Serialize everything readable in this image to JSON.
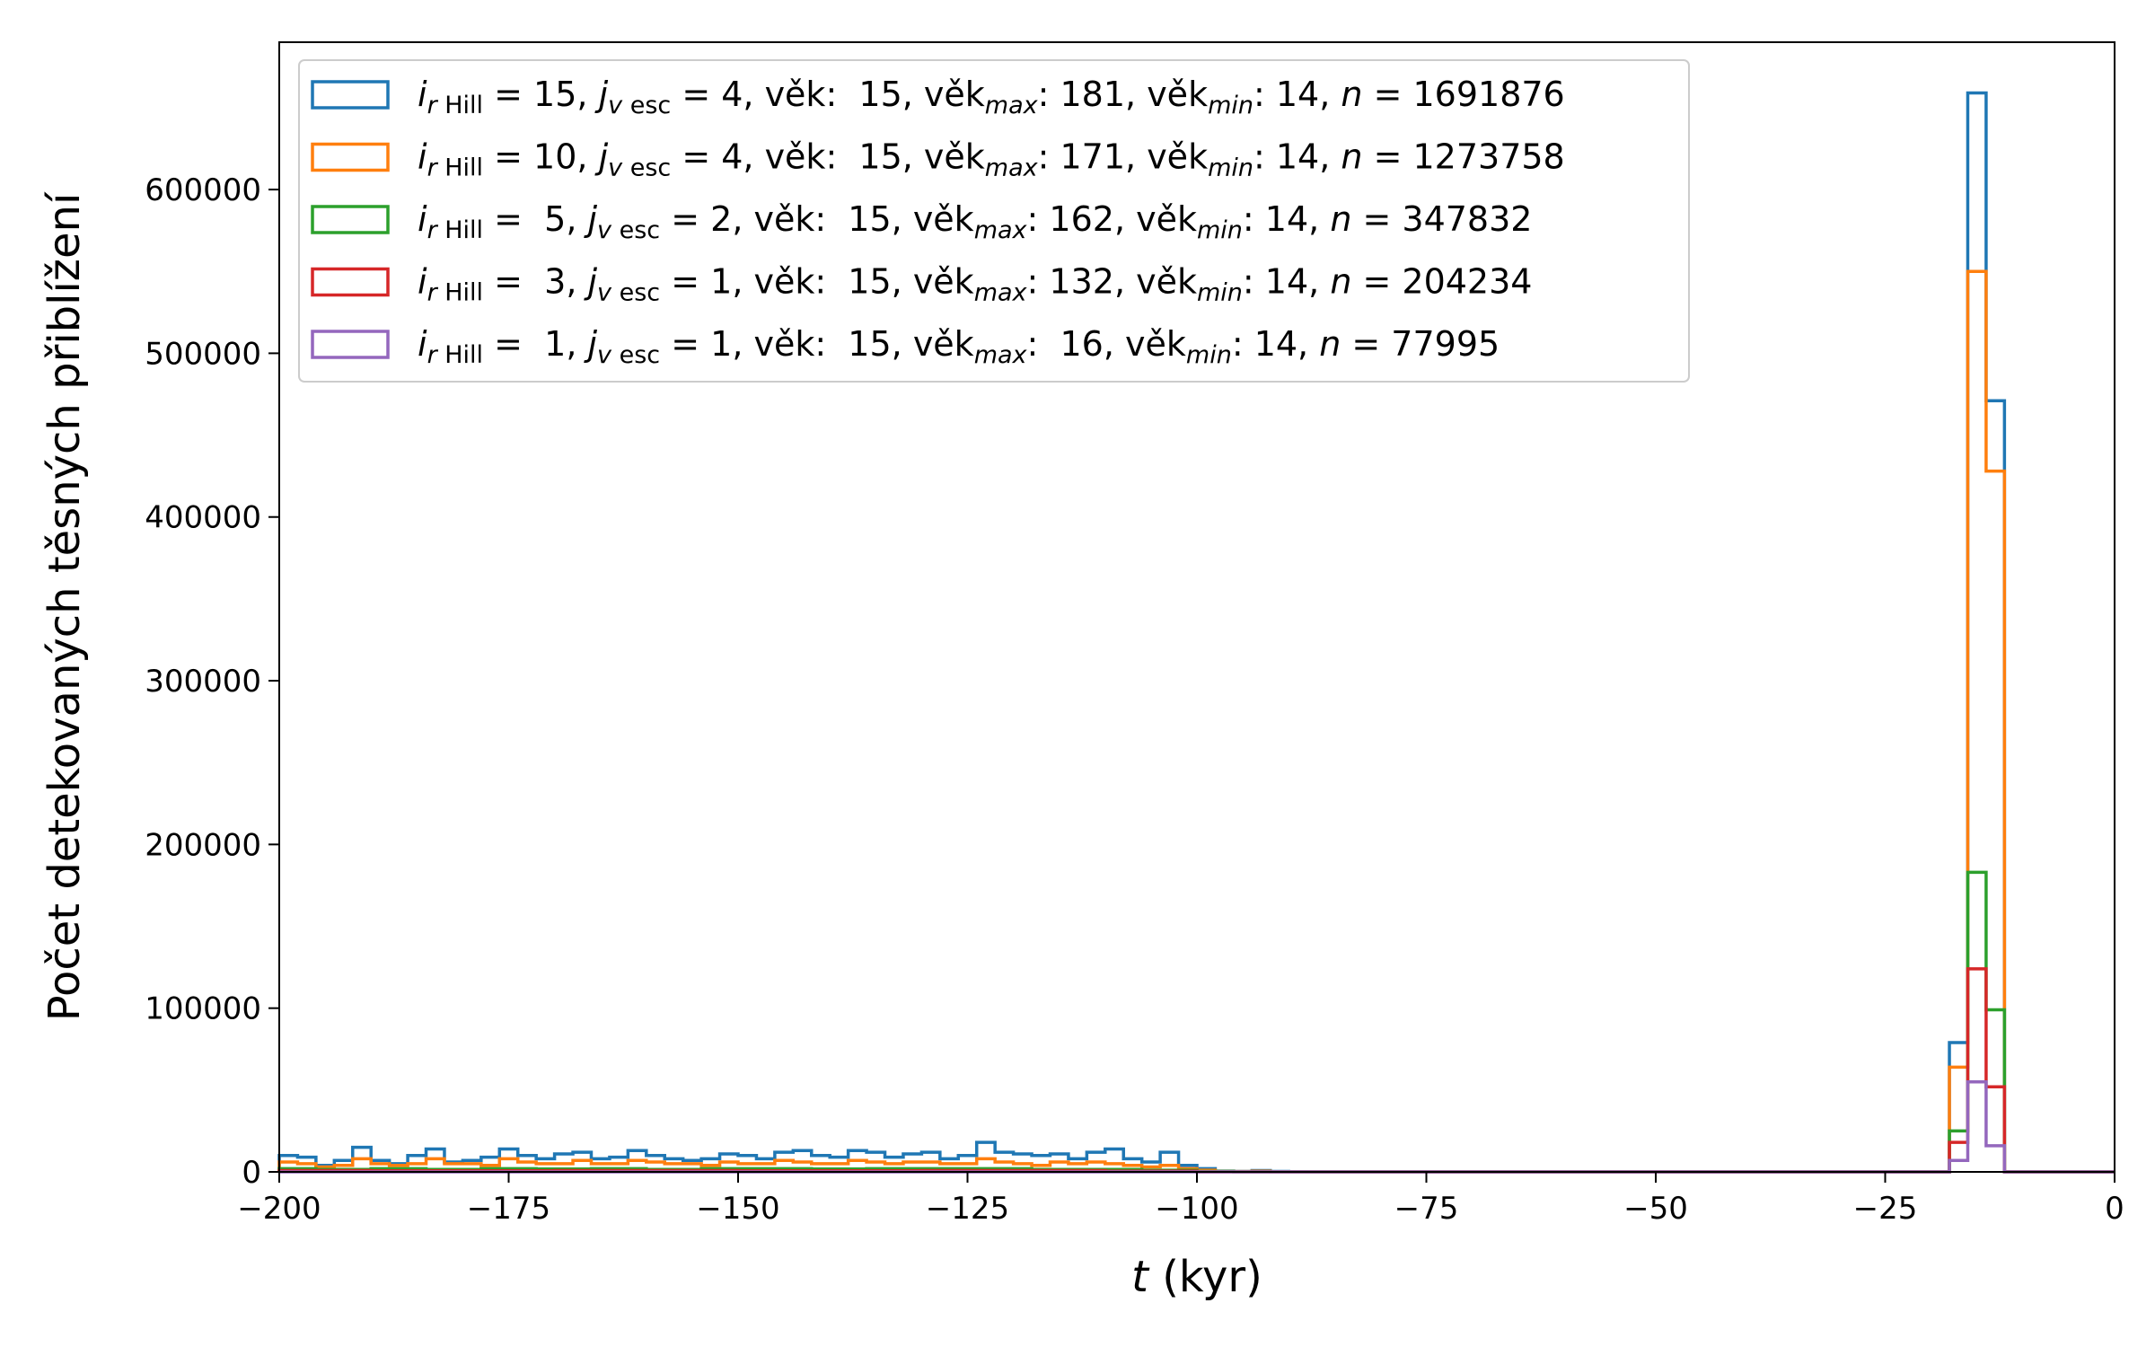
{
  "chart_data": {
    "type": "histogram-step",
    "xlabel_var": "t",
    "xlabel_unit": " (kyr)",
    "ylabel": "Počet detekovaných těsných přiblížení",
    "xlim": [
      -200,
      0
    ],
    "ylim": [
      0,
      690000
    ],
    "xticks": [
      -200,
      -175,
      -150,
      -125,
      -100,
      -75,
      -50,
      -25,
      0
    ],
    "xtick_labels": [
      "−200",
      "−175",
      "−150",
      "−125",
      "−100",
      "−75",
      "−50",
      "−25",
      "0"
    ],
    "yticks": [
      0,
      100000,
      200000,
      300000,
      400000,
      500000,
      600000
    ],
    "ytick_labels": [
      "0",
      "100000",
      "200000",
      "300000",
      "400000",
      "500000",
      "600000"
    ],
    "grid": false,
    "legend_position": "upper-left",
    "bin_width": 2,
    "series": [
      {
        "color": "#1f77b4",
        "legend": {
          "i": "15",
          "j": "4",
          "vek": "15",
          "vekmax": "181",
          "vekmin": "14",
          "n": "1691876"
        },
        "bins": [
          [
            -200,
            -198,
            10000
          ],
          [
            -198,
            -196,
            9000
          ],
          [
            -196,
            -194,
            4000
          ],
          [
            -194,
            -192,
            7000
          ],
          [
            -192,
            -190,
            15000
          ],
          [
            -190,
            -188,
            7000
          ],
          [
            -188,
            -186,
            5000
          ],
          [
            -186,
            -184,
            10000
          ],
          [
            -184,
            -182,
            14000
          ],
          [
            -182,
            -180,
            6000
          ],
          [
            -180,
            -178,
            7000
          ],
          [
            -178,
            -176,
            9000
          ],
          [
            -176,
            -174,
            14000
          ],
          [
            -174,
            -172,
            10000
          ],
          [
            -172,
            -170,
            8000
          ],
          [
            -170,
            -168,
            11000
          ],
          [
            -168,
            -166,
            12000
          ],
          [
            -166,
            -164,
            8000
          ],
          [
            -164,
            -162,
            9000
          ],
          [
            -162,
            -160,
            13000
          ],
          [
            -160,
            -158,
            10000
          ],
          [
            -158,
            -156,
            8000
          ],
          [
            -156,
            -154,
            7000
          ],
          [
            -154,
            -152,
            8000
          ],
          [
            -152,
            -150,
            11000
          ],
          [
            -150,
            -148,
            10000
          ],
          [
            -148,
            -146,
            8000
          ],
          [
            -146,
            -144,
            12000
          ],
          [
            -144,
            -142,
            13000
          ],
          [
            -142,
            -140,
            10000
          ],
          [
            -140,
            -138,
            9000
          ],
          [
            -138,
            -136,
            13000
          ],
          [
            -136,
            -134,
            12000
          ],
          [
            -134,
            -132,
            9000
          ],
          [
            -132,
            -130,
            11000
          ],
          [
            -130,
            -128,
            12000
          ],
          [
            -128,
            -126,
            8000
          ],
          [
            -126,
            -124,
            10000
          ],
          [
            -124,
            -122,
            18000
          ],
          [
            -122,
            -120,
            12000
          ],
          [
            -120,
            -118,
            11000
          ],
          [
            -118,
            -116,
            10000
          ],
          [
            -116,
            -114,
            11000
          ],
          [
            -114,
            -112,
            8000
          ],
          [
            -112,
            -110,
            12000
          ],
          [
            -110,
            -108,
            14000
          ],
          [
            -108,
            -106,
            8000
          ],
          [
            -106,
            -104,
            6000
          ],
          [
            -104,
            -102,
            12000
          ],
          [
            -102,
            -100,
            4000
          ],
          [
            -100,
            -98,
            2000
          ],
          [
            -98,
            -96,
            500
          ],
          [
            -96,
            -94,
            300
          ],
          [
            -94,
            -92,
            800
          ],
          [
            -92,
            -90,
            300
          ],
          [
            -90,
            -88,
            100
          ],
          [
            -18,
            -16,
            79000
          ],
          [
            -16,
            -14,
            659000
          ],
          [
            -14,
            -12,
            471000
          ],
          [
            -12,
            -10,
            0
          ]
        ]
      },
      {
        "color": "#ff7f0e",
        "legend": {
          "i": "10",
          "j": "4",
          "vek": "15",
          "vekmax": "171",
          "vekmin": "14",
          "n": "1273758"
        },
        "bins": [
          [
            -200,
            -198,
            6000
          ],
          [
            -198,
            -196,
            5000
          ],
          [
            -196,
            -194,
            3000
          ],
          [
            -194,
            -192,
            4000
          ],
          [
            -192,
            -190,
            8000
          ],
          [
            -190,
            -188,
            5000
          ],
          [
            -188,
            -186,
            4000
          ],
          [
            -186,
            -184,
            5000
          ],
          [
            -184,
            -182,
            8000
          ],
          [
            -182,
            -180,
            5000
          ],
          [
            -180,
            -178,
            5000
          ],
          [
            -178,
            -176,
            4000
          ],
          [
            -176,
            -174,
            8000
          ],
          [
            -174,
            -172,
            6000
          ],
          [
            -172,
            -170,
            5000
          ],
          [
            -170,
            -168,
            5000
          ],
          [
            -168,
            -166,
            7000
          ],
          [
            -166,
            -164,
            5000
          ],
          [
            -164,
            -162,
            5000
          ],
          [
            -162,
            -160,
            7000
          ],
          [
            -160,
            -158,
            6000
          ],
          [
            -158,
            -156,
            5000
          ],
          [
            -156,
            -154,
            5000
          ],
          [
            -154,
            -152,
            4000
          ],
          [
            -152,
            -150,
            6000
          ],
          [
            -150,
            -148,
            5000
          ],
          [
            -148,
            -146,
            5000
          ],
          [
            -146,
            -144,
            7000
          ],
          [
            -144,
            -142,
            6000
          ],
          [
            -142,
            -140,
            5000
          ],
          [
            -140,
            -138,
            5000
          ],
          [
            -138,
            -136,
            7000
          ],
          [
            -136,
            -134,
            6000
          ],
          [
            -134,
            -132,
            5000
          ],
          [
            -132,
            -130,
            6000
          ],
          [
            -130,
            -128,
            6000
          ],
          [
            -128,
            -126,
            5000
          ],
          [
            -126,
            -124,
            5000
          ],
          [
            -124,
            -122,
            8000
          ],
          [
            -122,
            -120,
            6000
          ],
          [
            -120,
            -118,
            5000
          ],
          [
            -118,
            -116,
            4000
          ],
          [
            -116,
            -114,
            6000
          ],
          [
            -114,
            -112,
            5000
          ],
          [
            -112,
            -110,
            6000
          ],
          [
            -110,
            -108,
            5000
          ],
          [
            -108,
            -106,
            4000
          ],
          [
            -106,
            -104,
            3000
          ],
          [
            -104,
            -102,
            4000
          ],
          [
            -102,
            -100,
            2000
          ],
          [
            -100,
            -98,
            1000
          ],
          [
            -98,
            -96,
            300
          ],
          [
            -96,
            -94,
            200
          ],
          [
            -94,
            -92,
            400
          ],
          [
            -18,
            -16,
            64000
          ],
          [
            -16,
            -14,
            550000
          ],
          [
            -14,
            -12,
            428000
          ],
          [
            -12,
            -10,
            0
          ]
        ]
      },
      {
        "color": "#2ca02c",
        "legend": {
          "i": " 5",
          "j": "2",
          "vek": "15",
          "vekmax": "162",
          "vekmin": "14",
          "n": "347832"
        },
        "bins": [
          [
            -200,
            -196,
            2000
          ],
          [
            -196,
            -190,
            1500
          ],
          [
            -190,
            -184,
            2000
          ],
          [
            -184,
            -178,
            1500
          ],
          [
            -178,
            -172,
            2000
          ],
          [
            -172,
            -166,
            1800
          ],
          [
            -166,
            -160,
            2000
          ],
          [
            -160,
            -154,
            1500
          ],
          [
            -154,
            -148,
            2000
          ],
          [
            -148,
            -142,
            2000
          ],
          [
            -142,
            -136,
            1800
          ],
          [
            -136,
            -130,
            2000
          ],
          [
            -130,
            -124,
            2000
          ],
          [
            -124,
            -118,
            2000
          ],
          [
            -118,
            -112,
            1500
          ],
          [
            -112,
            -106,
            1500
          ],
          [
            -106,
            -100,
            1000
          ],
          [
            -100,
            -96,
            300
          ],
          [
            -18,
            -16,
            25000
          ],
          [
            -16,
            -14,
            183000
          ],
          [
            -14,
            -12,
            99000
          ],
          [
            -12,
            -10,
            0
          ]
        ]
      },
      {
        "color": "#d62728",
        "legend": {
          "i": " 3",
          "j": "1",
          "vek": "15",
          "vekmax": "132",
          "vekmin": "14",
          "n": "204234"
        },
        "bins": [
          [
            -200,
            -190,
            800
          ],
          [
            -190,
            -170,
            700
          ],
          [
            -170,
            -150,
            800
          ],
          [
            -150,
            -130,
            700
          ],
          [
            -130,
            -110,
            800
          ],
          [
            -110,
            -100,
            500
          ],
          [
            -18,
            -16,
            18000
          ],
          [
            -16,
            -14,
            124000
          ],
          [
            -14,
            -12,
            52000
          ],
          [
            -12,
            -10,
            0
          ]
        ]
      },
      {
        "color": "#9467bd",
        "legend": {
          "i": " 1",
          "j": "1",
          "vek": "15",
          "vekmax": " 16",
          "vekmin": "14",
          "n": "77995"
        },
        "bins": [
          [
            -18,
            -16,
            7000
          ],
          [
            -16,
            -14,
            55000
          ],
          [
            -14,
            -12,
            16000
          ],
          [
            -12,
            -10,
            0
          ]
        ]
      }
    ]
  }
}
